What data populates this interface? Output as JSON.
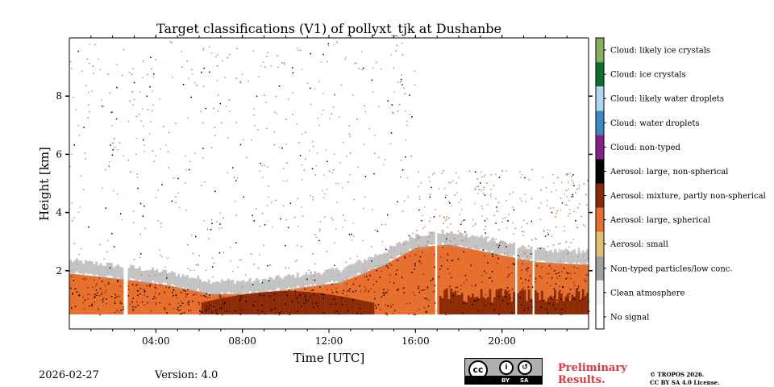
{
  "chart_data": {
    "type": "heatmap",
    "title": "Target classifications (V1) of pollyxt_tjk at Dushanbe",
    "xlabel": "Time [UTC]",
    "ylabel": "Height [km]",
    "xlim_hours": [
      0,
      24
    ],
    "ylim_km": [
      0,
      10
    ],
    "x_ticks": [
      {
        "hour": 4,
        "label": "04:00"
      },
      {
        "hour": 8,
        "label": "08:00"
      },
      {
        "hour": 12,
        "label": "12:00"
      },
      {
        "hour": 16,
        "label": "16:00"
      },
      {
        "hour": 20,
        "label": "20:00"
      }
    ],
    "y_ticks": [
      {
        "km": 2,
        "label": "2"
      },
      {
        "km": 4,
        "label": "4"
      },
      {
        "km": 6,
        "label": "6"
      },
      {
        "km": 8,
        "label": "8"
      }
    ],
    "classes": [
      {
        "id": 0,
        "label": "No signal",
        "color": "#ffffff"
      },
      {
        "id": 1,
        "label": "Clean atmosphere",
        "color": "#f5f5f5"
      },
      {
        "id": 2,
        "label": "Non-typed particles/low conc.",
        "color": "#a0a0a0"
      },
      {
        "id": 3,
        "label": "Aerosol: small",
        "color": "#e0c070"
      },
      {
        "id": 4,
        "label": "Aerosol: large, spherical",
        "color": "#e8702e"
      },
      {
        "id": 5,
        "label": "Aerosol: mixture, partly non-spherical",
        "color": "#8a2a06"
      },
      {
        "id": 6,
        "label": "Aerosol: large, non-spherical",
        "color": "#000000"
      },
      {
        "id": 7,
        "label": "Cloud: non-typed",
        "color": "#8a208a"
      },
      {
        "id": 8,
        "label": "Cloud: water droplets",
        "color": "#3a8ac8"
      },
      {
        "id": 9,
        "label": "Cloud: likely water droplets",
        "color": "#b0d8f0"
      },
      {
        "id": 10,
        "label": "Cloud: ice crystals",
        "color": "#107030"
      },
      {
        "id": 11,
        "label": "Cloud: likely ice crystals",
        "color": "#88b060"
      }
    ],
    "layer_top_km": [
      {
        "hour": 0.0,
        "top": 1.9
      },
      {
        "hour": 2.5,
        "top": 1.7
      },
      {
        "hour": 4.5,
        "top": 1.5
      },
      {
        "hour": 6.5,
        "top": 1.2
      },
      {
        "hour": 8.5,
        "top": 1.2
      },
      {
        "hour": 10.5,
        "top": 1.4
      },
      {
        "hour": 12.5,
        "top": 1.6
      },
      {
        "hour": 14.5,
        "top": 2.2
      },
      {
        "hour": 16.0,
        "top": 2.8
      },
      {
        "hour": 17.5,
        "top": 2.9
      },
      {
        "hour": 19.5,
        "top": 2.6
      },
      {
        "hour": 21.5,
        "top": 2.3
      },
      {
        "hour": 24.0,
        "top": 2.2
      }
    ],
    "data_gaps_hours": [
      [
        2.5,
        2.7
      ],
      [
        16.9,
        17.0
      ],
      [
        20.6,
        20.7
      ],
      [
        21.4,
        21.5
      ]
    ],
    "lowest_range_km": 0.5
  },
  "footer": {
    "date": "2026-02-27",
    "version": "Version: 4.0",
    "preliminary_line1": "Preliminary",
    "preliminary_line2": "Results.",
    "copyright_line1": "© TROPOS 2026.",
    "copyright_line2": "CC BY SA 4.0 License.",
    "cc_text": "cc",
    "cc_by": "BY",
    "cc_sa": "SA"
  }
}
